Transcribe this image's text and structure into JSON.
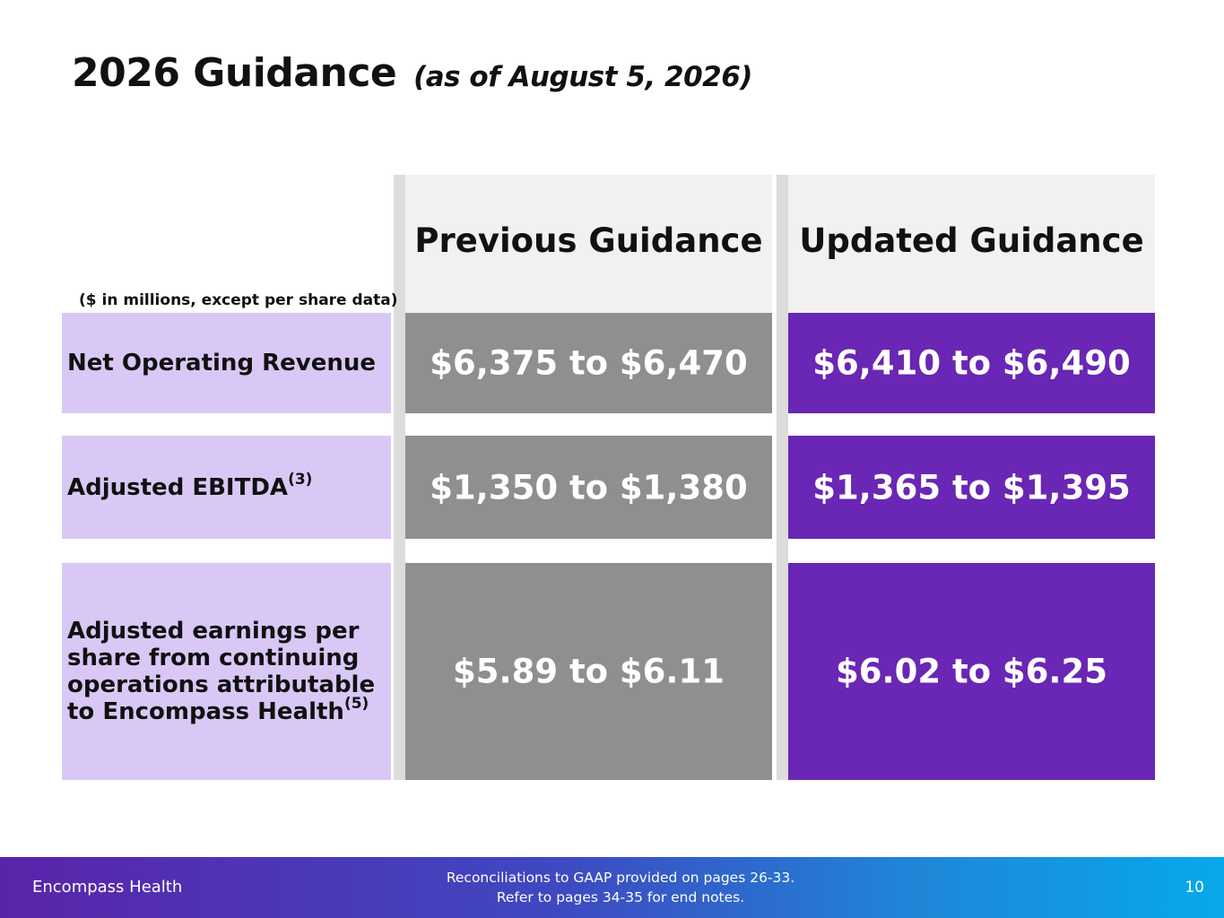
{
  "title": {
    "main": "2026 Guidance",
    "sub": "(as of August 5, 2026)"
  },
  "table": {
    "units_note": "($ in millions, except per share data)",
    "columns": {
      "previous": "Previous Guidance",
      "updated": "Updated Guidance"
    },
    "rows": [
      {
        "label": "Net Operating Revenue",
        "footnote": "",
        "previous": "$6,375 to $6,470",
        "updated": "$6,410 to $6,490"
      },
      {
        "label": "Adjusted EBITDA",
        "footnote": "(3)",
        "previous": "$1,350 to $1,380",
        "updated": "$1,365 to $1,395"
      },
      {
        "label": "Adjusted earnings per share from continuing operations attributable to Encompass Health",
        "footnote": "(5)",
        "previous": "$5.89 to $6.11",
        "updated": "$6.02 to $6.25"
      }
    ]
  },
  "footer": {
    "brand": "Encompass Health",
    "notes_line1": "Reconciliations to GAAP provided on pages 26-33.",
    "notes_line2": "Refer to pages 34-35 for end notes.",
    "page_number": "10"
  },
  "colors": {
    "label_bg": "#d9c8f6",
    "previous_bg": "#8f8f8f",
    "updated_bg": "#6a26b4",
    "header_bg": "#f1f1f1"
  }
}
